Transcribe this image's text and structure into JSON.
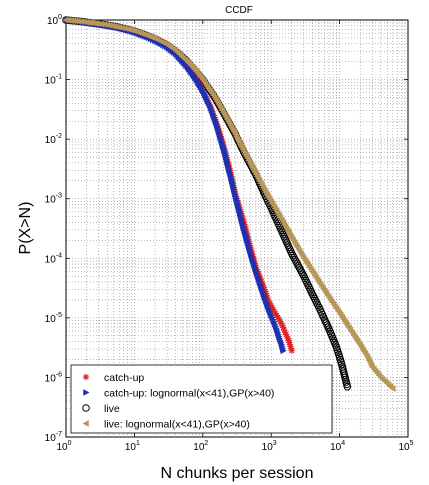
{
  "chart_data": {
    "type": "scatter",
    "title": "CCDF",
    "xlabel": "N chunks per session",
    "ylabel": "P(X>N)",
    "x_scale": "log",
    "y_scale": "log",
    "xlim": [
      1,
      100000
    ],
    "ylim": [
      1e-07,
      1
    ],
    "x_ticks": [
      {
        "base": "10",
        "exp": "0",
        "value": 1
      },
      {
        "base": "10",
        "exp": "1",
        "value": 10
      },
      {
        "base": "10",
        "exp": "2",
        "value": 100
      },
      {
        "base": "10",
        "exp": "3",
        "value": 1000
      },
      {
        "base": "10",
        "exp": "4",
        "value": 10000
      },
      {
        "base": "10",
        "exp": "5",
        "value": 100000
      }
    ],
    "y_ticks": [
      {
        "base": "10",
        "exp": "0",
        "value": 1
      },
      {
        "base": "10",
        "exp": "-1",
        "value": 0.1
      },
      {
        "base": "10",
        "exp": "-2",
        "value": 0.01
      },
      {
        "base": "10",
        "exp": "-3",
        "value": 0.001
      },
      {
        "base": "10",
        "exp": "-4",
        "value": 0.0001
      },
      {
        "base": "10",
        "exp": "-5",
        "value": 1e-05
      },
      {
        "base": "10",
        "exp": "-6",
        "value": 1e-06
      },
      {
        "base": "10",
        "exp": "-7",
        "value": 1e-07
      }
    ],
    "grid": true,
    "legend_position": "bottom-left",
    "series": [
      {
        "name": "catch-up",
        "marker": "asterisk",
        "color": "#e02020",
        "x": [
          1,
          1.3,
          1.7,
          2.2,
          3,
          4,
          5.5,
          7,
          10,
          15,
          20,
          30,
          40,
          55,
          70,
          100,
          130,
          160,
          200,
          250,
          300,
          400,
          500,
          600,
          700,
          800,
          900,
          1000,
          1100,
          1200,
          1300,
          1450,
          1600,
          1800,
          2000
        ],
        "y": [
          1,
          0.97,
          0.93,
          0.89,
          0.84,
          0.8,
          0.75,
          0.7,
          0.62,
          0.52,
          0.45,
          0.35,
          0.27,
          0.19,
          0.13,
          0.065,
          0.035,
          0.018,
          0.008,
          0.003,
          0.0012,
          0.0004,
          0.00015,
          7e-05,
          4.5e-05,
          3e-05,
          2e-05,
          1.6e-05,
          1.3e-05,
          1.1e-05,
          9.5e-06,
          7.5e-06,
          5.7e-06,
          4.2e-06,
          2.8e-06
        ]
      },
      {
        "name": "catch-up: lognormal(x<41),GP(x>40)",
        "marker": "triangle-right",
        "color": "#2030b0",
        "x": [
          1,
          1.5,
          2,
          3,
          4,
          6,
          8,
          10,
          15,
          20,
          30,
          40,
          60,
          80,
          100,
          130,
          160,
          200,
          250,
          300,
          400,
          500,
          600,
          700,
          800,
          900,
          1000,
          1100,
          1200,
          1300,
          1400,
          1500
        ],
        "y": [
          1,
          0.95,
          0.91,
          0.84,
          0.8,
          0.73,
          0.67,
          0.62,
          0.52,
          0.45,
          0.35,
          0.27,
          0.16,
          0.1,
          0.065,
          0.034,
          0.017,
          0.007,
          0.0026,
          0.0011,
          0.0003,
          0.00012,
          6e-05,
          3.5e-05,
          2.2e-05,
          1.5e-05,
          1.1e-05,
          8.5e-06,
          6.5e-06,
          4.8e-06,
          3.8e-06,
          2.8e-06
        ]
      },
      {
        "name": "live",
        "marker": "circle-open",
        "color": "#000000",
        "x": [
          1,
          1.3,
          1.7,
          2.2,
          3,
          4,
          5.5,
          7,
          10,
          15,
          20,
          30,
          40,
          55,
          70,
          100,
          150,
          200,
          300,
          400,
          600,
          800,
          1000,
          1500,
          2000,
          3000,
          4000,
          5000,
          6000,
          7000,
          8000,
          9000,
          10000,
          11000,
          12000,
          13000
        ],
        "y": [
          1,
          0.97,
          0.94,
          0.9,
          0.86,
          0.82,
          0.77,
          0.72,
          0.65,
          0.55,
          0.48,
          0.38,
          0.3,
          0.22,
          0.16,
          0.1,
          0.05,
          0.028,
          0.012,
          0.006,
          0.0025,
          0.0012,
          0.0007,
          0.00025,
          0.00012,
          5e-05,
          2.5e-05,
          1.5e-05,
          9.5e-06,
          6.5e-06,
          4.5e-06,
          3.2e-06,
          2.2e-06,
          1.5e-06,
          1e-06,
          7e-07
        ]
      },
      {
        "name": "live: lognormal(x<41),GP(x>40)",
        "marker": "triangle-left",
        "color": "#b8965a",
        "x": [
          1,
          1.5,
          2,
          3,
          4,
          6,
          8,
          10,
          15,
          20,
          30,
          40,
          60,
          80,
          100,
          150,
          200,
          300,
          400,
          600,
          800,
          1000,
          1500,
          2000,
          3000,
          4000,
          5000,
          7000,
          10000,
          13000,
          16000,
          20000,
          25000,
          30000,
          40000,
          60000
        ],
        "y": [
          1,
          0.96,
          0.92,
          0.87,
          0.83,
          0.76,
          0.71,
          0.66,
          0.56,
          0.49,
          0.39,
          0.31,
          0.2,
          0.14,
          0.1,
          0.05,
          0.028,
          0.012,
          0.0062,
          0.0026,
          0.0014,
          0.0009,
          0.0004,
          0.00022,
          0.0001,
          6e-05,
          4e-05,
          2.2e-05,
          1.2e-05,
          7.5e-06,
          5.2e-06,
          3.5e-06,
          2.3e-06,
          1.5e-06,
          1e-06,
          6.5e-07
        ]
      }
    ]
  }
}
